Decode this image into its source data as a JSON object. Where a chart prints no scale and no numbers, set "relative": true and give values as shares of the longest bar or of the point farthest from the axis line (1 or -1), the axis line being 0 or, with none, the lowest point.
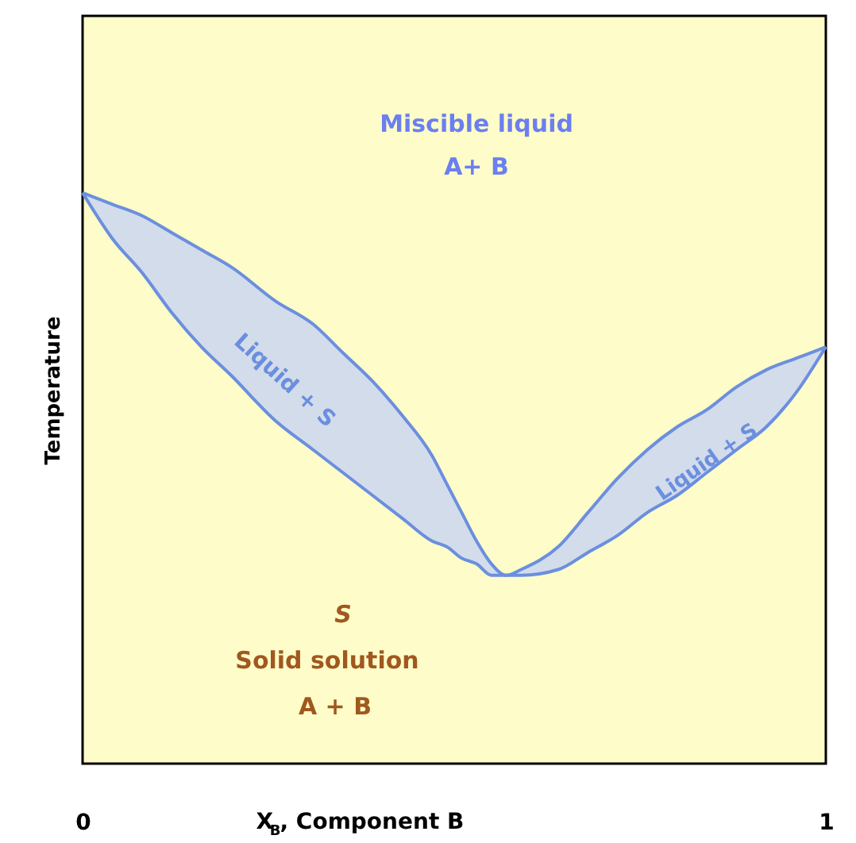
{
  "chart_data": {
    "type": "line",
    "relative": true,
    "xlabel": "X$_{B}$, Component B",
    "ylabel": "Temperature",
    "x": [
      0,
      0.04,
      0.08,
      0.12,
      0.16,
      0.2,
      0.26,
      0.31,
      0.35,
      0.39,
      0.43,
      0.47,
      0.49,
      0.51,
      0.53,
      0.55,
      0.57,
      0.59,
      0.64,
      0.68,
      0.72,
      0.76,
      0.8,
      0.84,
      0.88,
      0.92,
      0.96,
      1
    ],
    "xlim": [
      0,
      1
    ],
    "xticks": [
      0,
      1
    ],
    "series": [
      {
        "color": "#6b8fdf",
        "values": [
          1,
          0.98,
          0.96,
          0.93,
          0.9,
          0.87,
          0.81,
          0.77,
          0.72,
          0.67,
          0.61,
          0.54,
          0.49,
          0.44,
          0.39,
          0.35,
          0.33,
          0.34,
          0.38,
          0.44,
          0.5,
          0.55,
          0.59,
          0.62,
          0.66,
          0.69,
          0.71,
          0.73
        ],
        "lower": [
          1,
          0.92,
          0.86,
          0.79,
          0.73,
          0.68,
          0.6,
          0.55,
          0.51,
          0.47,
          0.43,
          0.39,
          0.38,
          0.36,
          0.35,
          0.33,
          0.33,
          0.33,
          0.34,
          0.37,
          0.4,
          0.44,
          0.47,
          0.51,
          0.55,
          0.59,
          0.65,
          0.73
        ],
        "upper": [
          1,
          0.98,
          0.96,
          0.93,
          0.9,
          0.87,
          0.81,
          0.77,
          0.72,
          0.67,
          0.61,
          0.54,
          0.49,
          0.44,
          0.39,
          0.35,
          0.33,
          0.34,
          0.38,
          0.44,
          0.5,
          0.55,
          0.59,
          0.62,
          0.66,
          0.69,
          0.71,
          0.73
        ]
      }
    ],
    "annotations": [
      "Miscible liquid",
      "A+ B",
      "Liquid + S",
      "Liquid + S",
      "S",
      "Solid solution",
      "A + B"
    ]
  }
}
